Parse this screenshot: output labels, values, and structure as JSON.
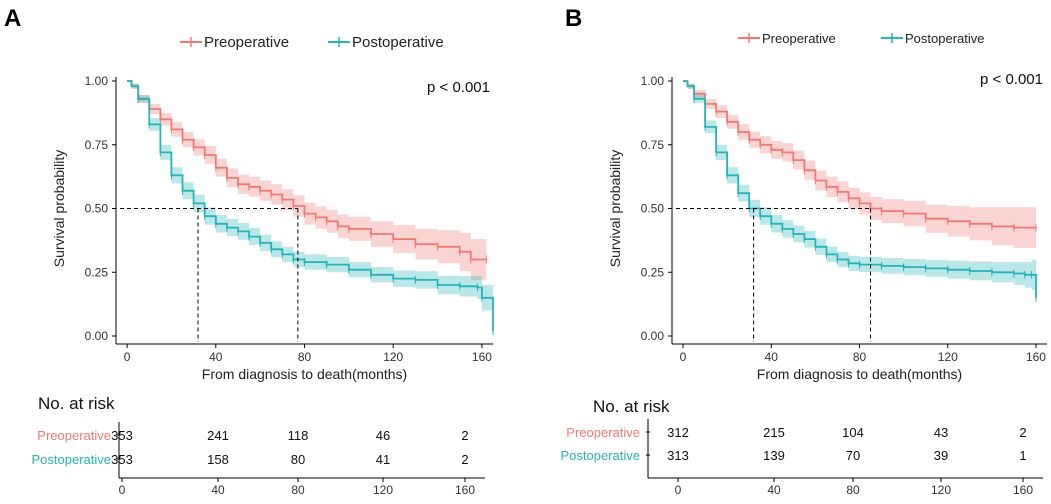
{
  "colors": {
    "pre": "#F07A72",
    "post": "#27B3B8",
    "axis": "#000000"
  },
  "chart_data": [
    {
      "type": "line",
      "panel_label": "A",
      "legend": [
        "Preoperative",
        "Postoperative"
      ],
      "pvalue": "p < 0.001",
      "xlabel": "From diagnosis to death(months)",
      "ylabel": "Survival probability",
      "xlim": [
        -5,
        165
      ],
      "ylim": [
        0,
        1
      ],
      "xticks": [
        0,
        40,
        80,
        120,
        160
      ],
      "yticks": [
        0,
        0.25,
        0.5,
        0.75,
        1
      ],
      "xtick_labels": [
        "0",
        "40",
        "80",
        "120",
        "160"
      ],
      "ytick_labels": [
        "0.00",
        "0.25",
        "0.50",
        "0.75",
        "1.00"
      ],
      "medians": [
        32,
        77
      ],
      "series": [
        {
          "name": "Preoperative",
          "x": [
            0,
            2,
            5,
            10,
            15,
            20,
            25,
            30,
            35,
            40,
            45,
            50,
            55,
            60,
            65,
            70,
            75,
            80,
            85,
            90,
            95,
            100,
            110,
            120,
            130,
            140,
            150,
            155,
            162
          ],
          "y": [
            1,
            0.98,
            0.93,
            0.89,
            0.85,
            0.81,
            0.77,
            0.74,
            0.71,
            0.66,
            0.62,
            0.595,
            0.585,
            0.57,
            0.555,
            0.535,
            0.51,
            0.48,
            0.465,
            0.45,
            0.43,
            0.42,
            0.4,
            0.38,
            0.36,
            0.35,
            0.33,
            0.3,
            0.3
          ],
          "ci_halfwidth": [
            0,
            0.01,
            0.015,
            0.02,
            0.025,
            0.028,
            0.03,
            0.032,
            0.035,
            0.035,
            0.037,
            0.038,
            0.039,
            0.04,
            0.04,
            0.041,
            0.042,
            0.043,
            0.044,
            0.045,
            0.046,
            0.047,
            0.05,
            0.055,
            0.06,
            0.065,
            0.075,
            0.08,
            0.085
          ]
        },
        {
          "name": "Postoperative",
          "x": [
            0,
            2,
            5,
            10,
            15,
            20,
            25,
            30,
            35,
            40,
            45,
            50,
            55,
            60,
            65,
            70,
            75,
            80,
            90,
            100,
            110,
            120,
            130,
            140,
            150,
            158,
            160,
            165
          ],
          "y": [
            1,
            0.98,
            0.93,
            0.83,
            0.72,
            0.63,
            0.57,
            0.52,
            0.47,
            0.44,
            0.425,
            0.41,
            0.39,
            0.365,
            0.34,
            0.32,
            0.3,
            0.29,
            0.28,
            0.26,
            0.24,
            0.225,
            0.22,
            0.2,
            0.195,
            0.19,
            0.15,
            0.02
          ],
          "ci_halfwidth": [
            0,
            0.01,
            0.015,
            0.025,
            0.03,
            0.032,
            0.033,
            0.034,
            0.034,
            0.034,
            0.034,
            0.033,
            0.033,
            0.032,
            0.031,
            0.03,
            0.03,
            0.03,
            0.03,
            0.03,
            0.03,
            0.032,
            0.034,
            0.036,
            0.04,
            0.045,
            0.05,
            0.05
          ]
        }
      ],
      "risk_table": {
        "title": "No. at risk",
        "times": [
          0,
          40,
          80,
          120,
          160
        ],
        "rows": [
          {
            "name": "Preoperative",
            "values": [
              "353",
              "241",
              "118",
              "46",
              "2"
            ]
          },
          {
            "name": "Postoperative",
            "values": [
              "353",
              "158",
              "80",
              "41",
              "2"
            ]
          }
        ]
      }
    },
    {
      "type": "line",
      "panel_label": "B",
      "legend": [
        "Preoperative",
        "Postoperative"
      ],
      "pvalue": "p < 0.001",
      "xlabel": "From diagnosis to death(months)",
      "ylabel": "Survival probability",
      "xlim": [
        -5,
        165
      ],
      "ylim": [
        0,
        1
      ],
      "xticks": [
        0,
        40,
        80,
        120,
        160
      ],
      "yticks": [
        0,
        0.25,
        0.5,
        0.75,
        1
      ],
      "xtick_labels": [
        "0",
        "40",
        "80",
        "120",
        "160"
      ],
      "ytick_labels": [
        "0.00",
        "0.25",
        "0.50",
        "0.75",
        "1.00"
      ],
      "medians": [
        32,
        85
      ],
      "series": [
        {
          "name": "Preoperative",
          "x": [
            0,
            2,
            5,
            10,
            15,
            20,
            25,
            30,
            35,
            40,
            45,
            50,
            55,
            60,
            65,
            70,
            75,
            80,
            85,
            90,
            100,
            110,
            120,
            130,
            140,
            150,
            160
          ],
          "y": [
            1,
            0.98,
            0.95,
            0.91,
            0.88,
            0.84,
            0.8,
            0.77,
            0.75,
            0.73,
            0.72,
            0.69,
            0.65,
            0.61,
            0.585,
            0.565,
            0.54,
            0.52,
            0.5,
            0.49,
            0.48,
            0.46,
            0.45,
            0.44,
            0.43,
            0.425,
            0.425
          ],
          "ci_halfwidth": [
            0,
            0.01,
            0.015,
            0.02,
            0.025,
            0.028,
            0.03,
            0.032,
            0.034,
            0.035,
            0.036,
            0.037,
            0.038,
            0.039,
            0.04,
            0.041,
            0.042,
            0.043,
            0.045,
            0.047,
            0.05,
            0.055,
            0.06,
            0.065,
            0.075,
            0.08,
            0.085
          ]
        },
        {
          "name": "Postoperative",
          "x": [
            0,
            2,
            5,
            10,
            15,
            20,
            25,
            30,
            35,
            40,
            45,
            50,
            55,
            60,
            65,
            70,
            75,
            80,
            90,
            100,
            110,
            120,
            130,
            140,
            150,
            155,
            158,
            160
          ],
          "y": [
            1,
            0.98,
            0.93,
            0.82,
            0.72,
            0.63,
            0.56,
            0.5,
            0.47,
            0.44,
            0.42,
            0.4,
            0.38,
            0.35,
            0.32,
            0.3,
            0.285,
            0.28,
            0.275,
            0.27,
            0.265,
            0.26,
            0.255,
            0.25,
            0.245,
            0.24,
            0.24,
            0.15
          ],
          "ci_halfwidth": [
            0,
            0.01,
            0.015,
            0.025,
            0.03,
            0.032,
            0.033,
            0.034,
            0.034,
            0.034,
            0.034,
            0.033,
            0.033,
            0.032,
            0.031,
            0.03,
            0.03,
            0.03,
            0.031,
            0.032,
            0.033,
            0.035,
            0.037,
            0.04,
            0.045,
            0.05,
            0.06,
            0.08
          ]
        }
      ],
      "risk_table": {
        "title": "No. at risk",
        "times": [
          0,
          40,
          80,
          120,
          160
        ],
        "rows": [
          {
            "name": "Preoperative",
            "values": [
              "312",
              "215",
              "104",
              "43",
              "2"
            ]
          },
          {
            "name": "Postoperative",
            "values": [
              "313",
              "139",
              "70",
              "39",
              "1"
            ]
          }
        ]
      }
    }
  ]
}
